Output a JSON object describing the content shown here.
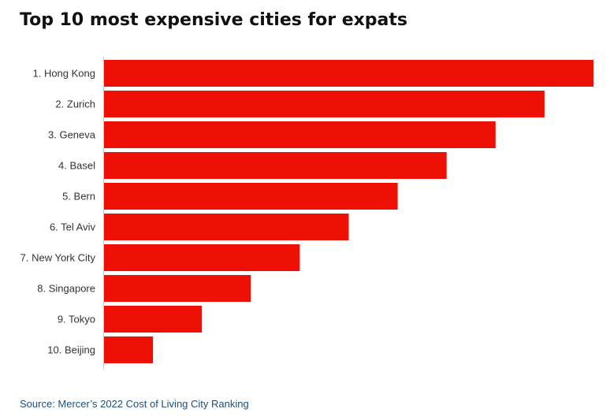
{
  "title": "Top 10 most expensive cities for expats",
  "source": "Source: Mercer’s 2022 Cost of Living City Ranking",
  "colors": {
    "bar": "#ee1004",
    "axis": "#cccccc",
    "source_text": "#1d4f7c"
  },
  "chart_data": {
    "type": "bar",
    "orientation": "horizontal",
    "title": "Top 10 most expensive cities for expats",
    "categories": [
      "1. Hong Kong",
      "2. Zurich",
      "3. Geneva",
      "4. Basel",
      "5. Bern",
      "6. Tel Aviv",
      "7. New York City",
      "8. Singapore",
      "9. Tokyo",
      "10. Beijing"
    ],
    "values": [
      10,
      9,
      8,
      7,
      6,
      5,
      4,
      3,
      2,
      1
    ],
    "xlim": [
      0,
      10
    ],
    "grid": false,
    "legend": "none"
  }
}
